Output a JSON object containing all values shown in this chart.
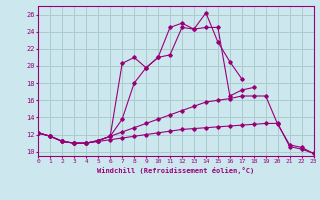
{
  "xlabel": "Windchill (Refroidissement éolien,°C)",
  "background_color": "#cce8ee",
  "grid_color": "#aacccc",
  "line_color": "#990077",
  "xlim": [
    0,
    23
  ],
  "ylim": [
    9.5,
    27
  ],
  "xticks": [
    0,
    1,
    2,
    3,
    4,
    5,
    6,
    7,
    8,
    9,
    10,
    11,
    12,
    13,
    14,
    15,
    16,
    17,
    18,
    19,
    20,
    21,
    22,
    23
  ],
  "yticks": [
    10,
    12,
    14,
    16,
    18,
    20,
    22,
    24,
    26
  ],
  "series": [
    [
      12.2,
      11.8,
      11.2,
      11.0,
      11.0,
      11.3,
      11.8,
      20.3,
      21.0,
      19.8,
      21.0,
      24.5,
      25.0,
      24.3,
      26.2,
      22.8,
      20.5,
      18.5,
      null,
      null,
      null,
      null,
      null,
      null
    ],
    [
      12.2,
      11.8,
      11.2,
      11.0,
      11.0,
      11.3,
      11.8,
      13.8,
      18.0,
      19.8,
      21.0,
      21.3,
      24.5,
      24.3,
      24.5,
      24.5,
      16.5,
      17.2,
      17.5,
      null,
      null,
      null,
      null,
      null
    ],
    [
      12.2,
      11.8,
      11.2,
      11.0,
      11.0,
      11.3,
      11.8,
      12.3,
      12.8,
      13.3,
      13.8,
      14.3,
      14.8,
      15.3,
      15.8,
      16.0,
      16.2,
      16.5,
      16.5,
      16.5,
      13.2,
      10.8,
      10.5,
      9.8
    ],
    [
      12.2,
      11.8,
      11.2,
      11.0,
      11.0,
      11.2,
      11.4,
      11.6,
      11.8,
      12.0,
      12.2,
      12.4,
      12.6,
      12.7,
      12.8,
      12.9,
      13.0,
      13.1,
      13.2,
      13.3,
      13.3,
      10.6,
      10.3,
      9.8
    ]
  ]
}
